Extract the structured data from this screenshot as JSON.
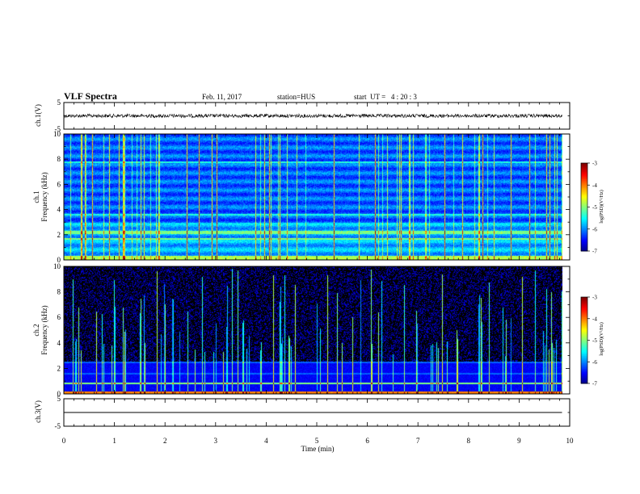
{
  "header": {
    "title": "VLF Spectra",
    "date": "Feb. 11, 2017",
    "station": "station=HUS",
    "start": "start  UT =   4 : 20 : 3"
  },
  "chart_data": [
    {
      "id": "ch1-waveform",
      "type": "line",
      "ylabel": "ch.1(V)",
      "ylim": [
        -5,
        5
      ],
      "yticks": [
        "5",
        "-5"
      ],
      "description_level": 0,
      "color": "#000000"
    },
    {
      "id": "ch1-spectrogram",
      "type": "heatmap",
      "ylabel": "ch.1\nFrequency (kHz)",
      "ylabel_lines": [
        "ch.1",
        "Frequency (kHz)"
      ],
      "ylim": [
        0,
        10
      ],
      "yticks": [
        "0",
        "2",
        "4",
        "6",
        "8",
        "10"
      ],
      "colorbar": {
        "label": "log(PSD)(V²/Hz)",
        "range": [
          -7,
          -3
        ],
        "ticks": [
          "-3",
          "-4",
          "-5",
          "-6",
          "-7"
        ]
      }
    },
    {
      "id": "ch2-spectrogram",
      "type": "heatmap",
      "ylabel": "ch.2\nFrequency (kHz)",
      "ylabel_lines": [
        "ch.2",
        "Frequency (kHz)"
      ],
      "ylim": [
        0,
        10
      ],
      "yticks": [
        "0",
        "2",
        "4",
        "6",
        "8",
        "10"
      ],
      "colorbar": {
        "label": "log(PSD)(V²/Hz)",
        "range": [
          -7,
          -3
        ],
        "ticks": [
          "-3",
          "-4",
          "-5",
          "-6",
          "-7"
        ]
      }
    },
    {
      "id": "ch3-waveform",
      "type": "line",
      "ylabel": "ch.3(V)",
      "ylim": [
        -5,
        5
      ],
      "yticks": [
        "5",
        "-5"
      ],
      "color": "#000000"
    }
  ],
  "x_axis": {
    "label": "Time (min)",
    "range": [
      0,
      10
    ],
    "ticks": [
      "0",
      "1",
      "2",
      "3",
      "4",
      "5",
      "6",
      "7",
      "8",
      "9",
      "10"
    ],
    "data_end": 9.85
  },
  "colors": {
    "background": "#ffffff",
    "axis": "#000000"
  }
}
